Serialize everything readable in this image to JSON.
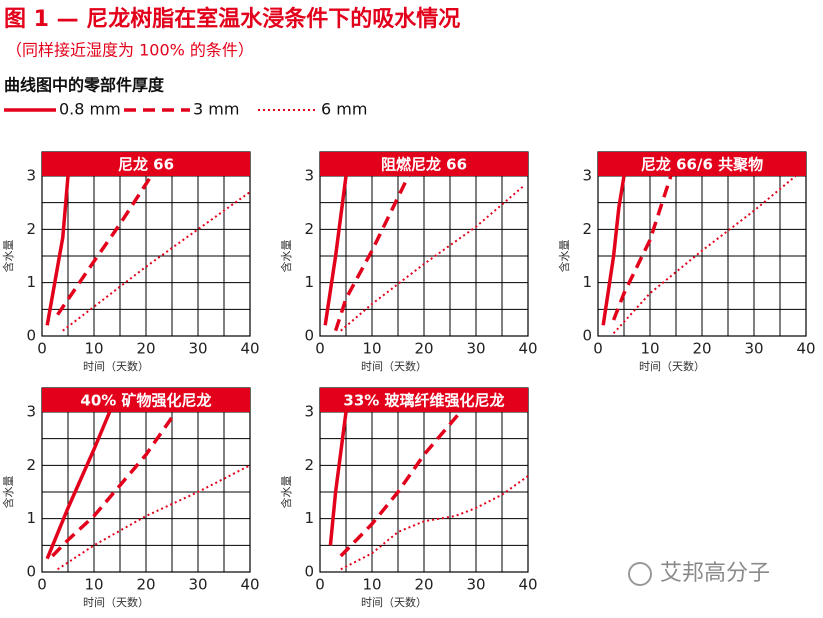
{
  "header": {
    "title": "图 1 — 尼龙树脂在室温水浸条件下的吸水情况",
    "subtitle": "（同样接近湿度为 100% 的条件）"
  },
  "legend": {
    "title": "曲线图中的零部件厚度",
    "entries": [
      {
        "name": "0.8 mm",
        "style": "solid",
        "color": "#e3001b"
      },
      {
        "name": "3 mm",
        "style": "dashed",
        "color": "#e3001b"
      },
      {
        "name": "6 mm",
        "style": "dotted",
        "color": "#e3001b"
      }
    ]
  },
  "watermark": "艾邦高分子",
  "chart_data": [
    {
      "type": "line",
      "title": "尼龙 66",
      "x_label": "时间（天数）",
      "y_label": "含水量",
      "xlim": [
        0,
        40
      ],
      "ylim": [
        0,
        3
      ],
      "xticks": [
        0,
        10,
        20,
        30,
        40
      ],
      "yticks": [
        0,
        1,
        2,
        3
      ],
      "x_grid": [
        0,
        5,
        10,
        15,
        20,
        25,
        30,
        35,
        40
      ],
      "y_grid": [
        0,
        0.5,
        1,
        1.5,
        2,
        2.5,
        3
      ],
      "series": [
        {
          "style": "solid",
          "color": "#e3001b",
          "x": [
            1,
            4,
            5
          ],
          "values": [
            0.2,
            1.85,
            3
          ]
        },
        {
          "style": "dashed",
          "color": "#e3001b",
          "x": [
            3,
            10,
            15,
            21
          ],
          "values": [
            0.4,
            1.4,
            2.1,
            3
          ]
        },
        {
          "style": "dotted",
          "color": "#e3001b",
          "x": [
            4,
            10,
            20,
            30,
            40
          ],
          "values": [
            0.1,
            0.55,
            1.3,
            2.0,
            2.7
          ]
        }
      ]
    },
    {
      "type": "line",
      "title": "阻燃尼龙 66",
      "x_label": "时间（天数）",
      "y_label": "含水量",
      "xlim": [
        0,
        40
      ],
      "ylim": [
        0,
        3
      ],
      "xticks": [
        0,
        10,
        20,
        30,
        40
      ],
      "yticks": [
        0,
        1,
        2,
        3
      ],
      "x_grid": [
        0,
        5,
        10,
        15,
        20,
        25,
        30,
        35,
        40
      ],
      "y_grid": [
        0,
        0.5,
        1,
        1.5,
        2,
        2.5,
        3
      ],
      "series": [
        {
          "style": "solid",
          "color": "#e3001b",
          "x": [
            1,
            3,
            5
          ],
          "values": [
            0.2,
            1.5,
            3
          ]
        },
        {
          "style": "dashed",
          "color": "#e3001b",
          "x": [
            3,
            5,
            10,
            17
          ],
          "values": [
            0.1,
            0.7,
            1.6,
            3
          ]
        },
        {
          "style": "dotted",
          "color": "#e3001b",
          "x": [
            4,
            10,
            20,
            30,
            39
          ],
          "values": [
            0.1,
            0.6,
            1.35,
            2.05,
            2.8
          ]
        }
      ]
    },
    {
      "type": "line",
      "title": "尼龙 66/6 共聚物",
      "x_label": "时间（天数）",
      "y_label": "含水量",
      "xlim": [
        0,
        40
      ],
      "ylim": [
        0,
        3
      ],
      "xticks": [
        0,
        10,
        20,
        30,
        40
      ],
      "yticks": [
        0,
        1,
        2,
        3
      ],
      "x_grid": [
        0,
        5,
        10,
        15,
        20,
        25,
        30,
        35,
        40
      ],
      "y_grid": [
        0,
        0.5,
        1,
        1.5,
        2,
        2.5,
        3
      ],
      "series": [
        {
          "style": "solid",
          "color": "#e3001b",
          "x": [
            1,
            3,
            4,
            5
          ],
          "values": [
            0.2,
            1.5,
            2.4,
            3
          ]
        },
        {
          "style": "dashed",
          "color": "#e3001b",
          "x": [
            3,
            5,
            10,
            14
          ],
          "values": [
            0.3,
            0.8,
            1.8,
            3
          ]
        },
        {
          "style": "dotted",
          "color": "#e3001b",
          "x": [
            3,
            10,
            20,
            30,
            38
          ],
          "values": [
            0.05,
            0.8,
            1.6,
            2.35,
            3
          ]
        }
      ]
    },
    {
      "type": "line",
      "title": "40% 矿物强化尼龙",
      "x_label": "时间（天数）",
      "y_label": "含水量",
      "xlim": [
        0,
        40
      ],
      "ylim": [
        0,
        3
      ],
      "xticks": [
        0,
        10,
        20,
        30,
        40
      ],
      "yticks": [
        0,
        1,
        2,
        3
      ],
      "x_grid": [
        0,
        5,
        10,
        15,
        20,
        25,
        30,
        35,
        40
      ],
      "y_grid": [
        0,
        0.5,
        1,
        1.5,
        2,
        2.5,
        3
      ],
      "series": [
        {
          "style": "solid",
          "color": "#e3001b",
          "x": [
            1,
            5,
            10,
            13
          ],
          "values": [
            0.25,
            1.2,
            2.3,
            3
          ]
        },
        {
          "style": "dashed",
          "color": "#e3001b",
          "x": [
            2,
            5,
            10,
            20,
            25
          ],
          "values": [
            0.3,
            0.6,
            1.05,
            2.2,
            2.9
          ]
        },
        {
          "style": "dotted",
          "color": "#e3001b",
          "x": [
            3,
            10,
            20,
            30,
            40
          ],
          "values": [
            0.05,
            0.5,
            1.05,
            1.5,
            2.0
          ]
        }
      ]
    },
    {
      "type": "line",
      "title": "33% 玻璃纤维强化尼龙",
      "x_label": "时间（天数）",
      "y_label": "含水量",
      "xlim": [
        0,
        40
      ],
      "ylim": [
        0,
        3
      ],
      "xticks": [
        0,
        10,
        20,
        30,
        40
      ],
      "yticks": [
        0,
        1,
        2,
        3
      ],
      "x_grid": [
        0,
        5,
        10,
        15,
        20,
        25,
        30,
        35,
        40
      ],
      "y_grid": [
        0,
        0.5,
        1,
        1.5,
        2,
        2.5,
        3
      ],
      "series": [
        {
          "style": "solid",
          "color": "#e3001b",
          "x": [
            2,
            3,
            5
          ],
          "values": [
            0.5,
            1.5,
            3
          ]
        },
        {
          "style": "dashed",
          "color": "#e3001b",
          "x": [
            4,
            10,
            15,
            20,
            27
          ],
          "values": [
            0.3,
            0.9,
            1.5,
            2.2,
            3
          ]
        },
        {
          "style": "dotted",
          "color": "#e3001b",
          "x": [
            4,
            10,
            15,
            20,
            26,
            30,
            35,
            40
          ],
          "values": [
            0.05,
            0.35,
            0.75,
            0.95,
            1.05,
            1.2,
            1.45,
            1.8
          ]
        }
      ]
    }
  ]
}
